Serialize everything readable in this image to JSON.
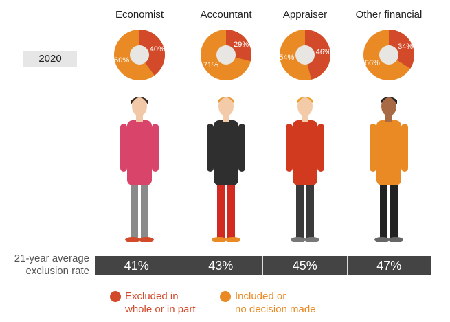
{
  "year": "2020",
  "colors": {
    "excluded": "#d24a2a",
    "included": "#e98a24",
    "center": "#e8e6e3",
    "bar": "#444444"
  },
  "chart_data": {
    "type": "pie",
    "title": "",
    "charts": [
      {
        "category": "Economist",
        "excluded": 40,
        "included": 60,
        "excluded_label": "40%",
        "included_label": "60%",
        "average": "41%"
      },
      {
        "category": "Accountant",
        "excluded": 29,
        "included": 71,
        "excluded_label": "29%",
        "included_label": "71%",
        "average": "43%"
      },
      {
        "category": "Appraiser",
        "excluded": 46,
        "included": 54,
        "excluded_label": "46%",
        "included_label": "54%",
        "average": "45%"
      },
      {
        "category": "Other financial",
        "excluded": 34,
        "included": 66,
        "excluded_label": "34%",
        "included_label": "66%",
        "average": "47%"
      }
    ],
    "legend": [
      {
        "label_line1": "Excluded in",
        "label_line2": "whole or in part"
      },
      {
        "label_line1": "Included or",
        "label_line2": "no decision made"
      }
    ]
  },
  "average_label_line1": "21-year average",
  "average_label_line2": "exclusion rate",
  "people": [
    {
      "shirt": "#d9446a",
      "pants": "#8a8a8a",
      "skin": "#f2c9a8",
      "hair": "#3a2a20",
      "shoes": "#d24a2a"
    },
    {
      "shirt": "#2f2f2f",
      "pants": "#d22a20",
      "skin": "#f4cba8",
      "hair": "#e89a3a",
      "shoes": "#e98a24"
    },
    {
      "shirt": "#d23a20",
      "pants": "#3a3a3a",
      "skin": "#f4cba8",
      "hair": "#f0a020",
      "shoes": "#777"
    },
    {
      "shirt": "#e98a24",
      "pants": "#222",
      "skin": "#a86a45",
      "hair": "#222",
      "shoes": "#666"
    }
  ]
}
